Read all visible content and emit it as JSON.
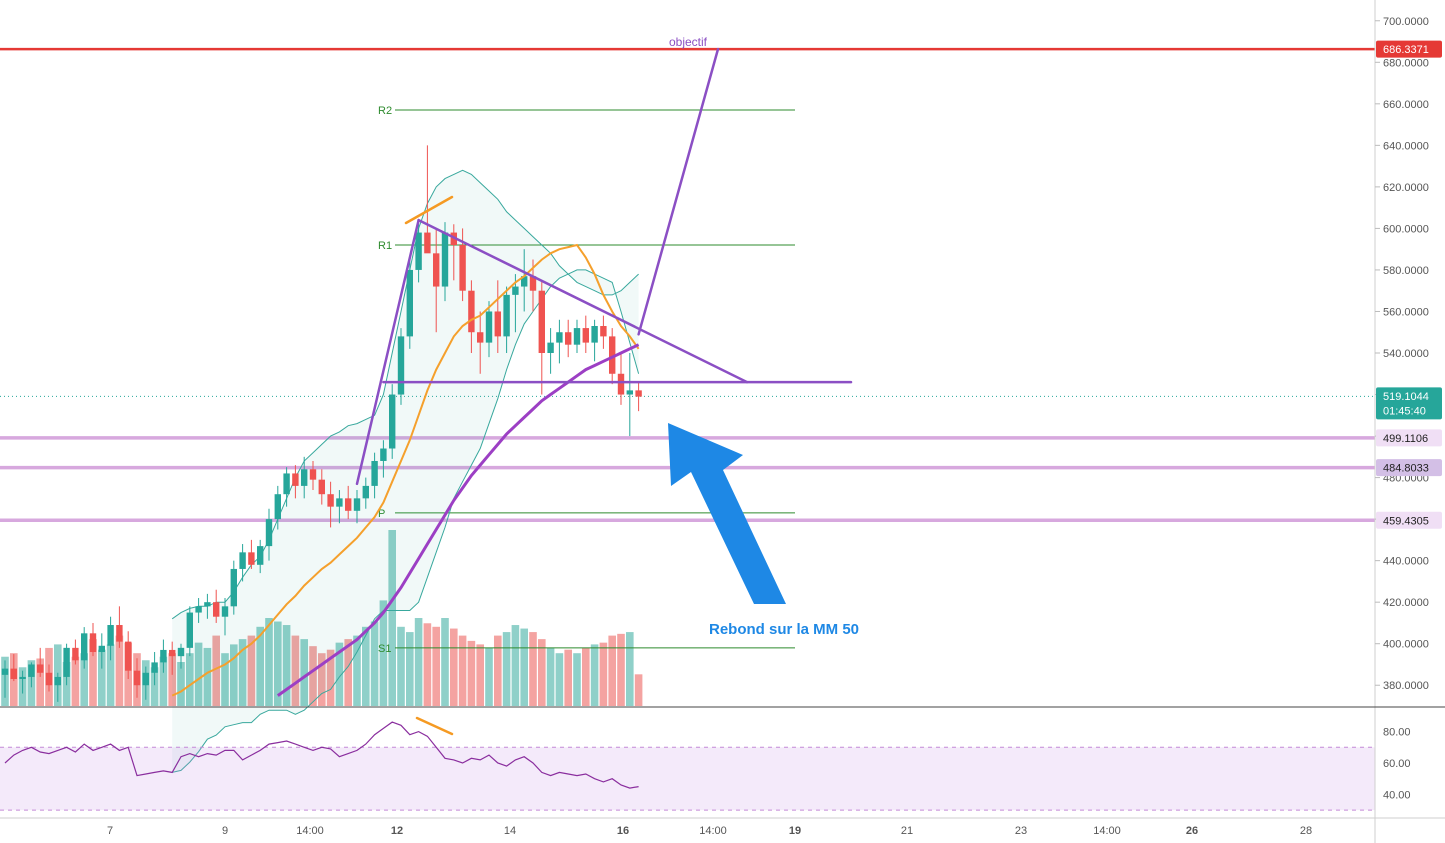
{
  "chart_data": {
    "type": "candlestick",
    "price_axis": {
      "min": 370,
      "max": 710,
      "ticks": [
        380,
        400,
        420,
        440,
        460,
        480,
        500,
        520,
        540,
        560,
        580,
        600,
        620,
        640,
        660,
        680,
        700
      ],
      "tick_labels": [
        "380.0000",
        "400.0000",
        "420.0000",
        "440.0000",
        "460.0000",
        "480.0000",
        "500.0000",
        "520.0000",
        "540.0000",
        "560.0000",
        "580.0000",
        "600.0000",
        "620.0000",
        "640.0000",
        "660.0000",
        "680.0000",
        "700.0000"
      ]
    },
    "time_axis": {
      "tick_labels": [
        "7",
        "9",
        "14:00",
        "12",
        "14",
        "16",
        "14:00",
        "19",
        "21",
        "23",
        "14:00",
        "26",
        "28"
      ],
      "bold": [
        "12",
        "16",
        "19",
        "26"
      ]
    },
    "colors": {
      "up": "#26a69a",
      "down": "#ef5350",
      "up_volume": "#8fd0c9",
      "down_volume": "#f4a3a1",
      "resistance": "#e53935",
      "support": "#d7a8de",
      "pattern": "#8b4fc4",
      "ma20": "#f5a02c",
      "ma50": "#9c3fc4",
      "bollinger": "#38a89d",
      "pivot": "#2e8b2e",
      "arrow": "#1e88e5",
      "divergence": "#f59a23"
    },
    "candles": [
      [
        385,
        392,
        374,
        388
      ],
      [
        388,
        395,
        382,
        383
      ],
      [
        383,
        387,
        376,
        384
      ],
      [
        384,
        391,
        379,
        390
      ],
      [
        390,
        398,
        384,
        386
      ],
      [
        386,
        390,
        377,
        380
      ],
      [
        380,
        386,
        372,
        384
      ],
      [
        384,
        400,
        380,
        398
      ],
      [
        398,
        402,
        390,
        392
      ],
      [
        392,
        408,
        388,
        405
      ],
      [
        405,
        410,
        394,
        396
      ],
      [
        396,
        405,
        388,
        399
      ],
      [
        399,
        413,
        392,
        409
      ],
      [
        409,
        418,
        398,
        401
      ],
      [
        401,
        406,
        383,
        387
      ],
      [
        387,
        393,
        374,
        380
      ],
      [
        380,
        389,
        373,
        386
      ],
      [
        386,
        396,
        380,
        391
      ],
      [
        391,
        402,
        386,
        397
      ],
      [
        397,
        401,
        385,
        394
      ],
      [
        394,
        400,
        388,
        398
      ],
      [
        398,
        418,
        394,
        415
      ],
      [
        415,
        422,
        410,
        418
      ],
      [
        418,
        424,
        412,
        420
      ],
      [
        420,
        426,
        410,
        413
      ],
      [
        413,
        422,
        404,
        418
      ],
      [
        418,
        440,
        414,
        436
      ],
      [
        436,
        448,
        430,
        444
      ],
      [
        444,
        450,
        436,
        438
      ],
      [
        438,
        450,
        434,
        447
      ],
      [
        447,
        465,
        440,
        460
      ],
      [
        460,
        476,
        455,
        472
      ],
      [
        472,
        485,
        466,
        482
      ],
      [
        482,
        486,
        470,
        476
      ],
      [
        476,
        490,
        470,
        484
      ],
      [
        484,
        488,
        474,
        479
      ],
      [
        479,
        484,
        467,
        472
      ],
      [
        472,
        478,
        456,
        466
      ],
      [
        466,
        474,
        458,
        470
      ],
      [
        470,
        476,
        460,
        464
      ],
      [
        464,
        474,
        458,
        470
      ],
      [
        470,
        480,
        465,
        476
      ],
      [
        476,
        492,
        470,
        488
      ],
      [
        488,
        498,
        480,
        494
      ],
      [
        494,
        525,
        489,
        520
      ],
      [
        520,
        552,
        515,
        548
      ],
      [
        548,
        585,
        542,
        580
      ],
      [
        580,
        603,
        574,
        598
      ],
      [
        598,
        640,
        590,
        588
      ],
      [
        588,
        600,
        550,
        572
      ],
      [
        572,
        603,
        565,
        598
      ],
      [
        598,
        602,
        575,
        592
      ],
      [
        592,
        600,
        565,
        570
      ],
      [
        570,
        575,
        540,
        550
      ],
      [
        550,
        560,
        530,
        545
      ],
      [
        545,
        565,
        538,
        560
      ],
      [
        560,
        575,
        540,
        548
      ],
      [
        548,
        572,
        540,
        568
      ],
      [
        568,
        578,
        550,
        572
      ],
      [
        572,
        590,
        560,
        577
      ],
      [
        577,
        585,
        560,
        570
      ],
      [
        570,
        575,
        520,
        540
      ],
      [
        540,
        552,
        530,
        545
      ],
      [
        545,
        556,
        535,
        550
      ],
      [
        550,
        556,
        538,
        544
      ],
      [
        544,
        556,
        540,
        552
      ],
      [
        552,
        558,
        540,
        545
      ],
      [
        545,
        556,
        536,
        553
      ],
      [
        553,
        558,
        542,
        548
      ],
      [
        548,
        552,
        525,
        530
      ],
      [
        530,
        540,
        515,
        520
      ],
      [
        520,
        540,
        500,
        522
      ],
      [
        522,
        526,
        512,
        519
      ]
    ],
    "volume_rel": [
      0.28,
      0.3,
      0.22,
      0.26,
      0.27,
      0.33,
      0.35,
      0.25,
      0.28,
      0.3,
      0.38,
      0.32,
      0.35,
      0.4,
      0.36,
      0.3,
      0.26,
      0.22,
      0.28,
      0.3,
      0.25,
      0.3,
      0.36,
      0.33,
      0.4,
      0.3,
      0.35,
      0.38,
      0.4,
      0.45,
      0.5,
      0.48,
      0.46,
      0.4,
      0.38,
      0.34,
      0.3,
      0.32,
      0.36,
      0.38,
      0.4,
      0.45,
      0.48,
      0.6,
      1.0,
      0.45,
      0.42,
      0.5,
      0.47,
      0.45,
      0.5,
      0.44,
      0.4,
      0.37,
      0.35,
      0.33,
      0.4,
      0.42,
      0.46,
      0.44,
      0.42,
      0.38,
      0.33,
      0.3,
      0.32,
      0.3,
      0.33,
      0.35,
      0.36,
      0.4,
      0.41,
      0.42,
      0.18
    ],
    "sma20": [
      null,
      null,
      null,
      null,
      null,
      null,
      null,
      null,
      null,
      null,
      null,
      null,
      null,
      null,
      null,
      null,
      null,
      null,
      null,
      375,
      377,
      380,
      383,
      386,
      388,
      390,
      393,
      397,
      400,
      404,
      409,
      414,
      419,
      423,
      428,
      432,
      436,
      439,
      443,
      447,
      451,
      456,
      461,
      468,
      478,
      488,
      498,
      510,
      522,
      532,
      540,
      548,
      553,
      556,
      558,
      562,
      566,
      570,
      574,
      577,
      581,
      585,
      588,
      590,
      591,
      592,
      586,
      578,
      568,
      560,
      553,
      548,
      542
    ],
    "sma50": [
      null,
      null,
      null,
      null,
      null,
      null,
      null,
      null,
      null,
      null,
      null,
      null,
      null,
      null,
      null,
      null,
      null,
      null,
      null,
      null,
      null,
      null,
      null,
      null,
      null,
      null,
      null,
      null,
      null,
      null,
      null,
      375,
      378,
      381,
      384,
      387,
      390,
      393,
      396,
      399,
      402,
      406,
      410,
      415,
      421,
      427,
      434,
      441,
      448,
      455,
      462,
      469,
      475,
      481,
      486,
      491,
      496,
      501,
      505,
      509,
      513,
      517,
      520,
      523,
      526,
      529,
      532,
      534,
      536,
      538,
      540,
      542,
      544
    ],
    "bollinger_upper": [
      null,
      null,
      null,
      null,
      null,
      null,
      null,
      null,
      null,
      null,
      null,
      null,
      null,
      null,
      null,
      null,
      null,
      null,
      null,
      412,
      415,
      417,
      418,
      418,
      420,
      420,
      425,
      432,
      438,
      442,
      450,
      460,
      470,
      480,
      488,
      492,
      496,
      500,
      502,
      505,
      506,
      508,
      510,
      520,
      540,
      560,
      580,
      600,
      612,
      620,
      624,
      626,
      628,
      626,
      622,
      618,
      614,
      608,
      604,
      600,
      596,
      592,
      588,
      582,
      578,
      574,
      572,
      570,
      568,
      568,
      570,
      574,
      578
    ],
    "bollinger_lower": [
      null,
      null,
      null,
      null,
      null,
      null,
      null,
      null,
      null,
      null,
      null,
      null,
      null,
      null,
      null,
      null,
      null,
      null,
      null,
      338,
      339,
      343,
      348,
      354,
      356,
      360,
      361,
      362,
      362,
      366,
      368,
      368,
      368,
      366,
      368,
      372,
      376,
      378,
      384,
      389,
      396,
      404,
      412,
      416,
      416,
      416,
      416,
      420,
      432,
      444,
      456,
      470,
      478,
      486,
      494,
      506,
      518,
      532,
      544,
      554,
      560,
      566,
      572,
      576,
      578,
      580,
      580,
      578,
      576,
      574,
      560,
      545,
      530
    ],
    "rsi": {
      "min": 25,
      "max": 95,
      "upper_band": 70,
      "lower_band": 30,
      "ticks": [
        40,
        60,
        80
      ],
      "tick_labels": [
        "40.00",
        "60.00",
        "80.00"
      ],
      "values": [
        60,
        65,
        68,
        70,
        67,
        66,
        68,
        70,
        67,
        72,
        68,
        70,
        72,
        68,
        70,
        52,
        53,
        54,
        55,
        54,
        64,
        66,
        64,
        66,
        65,
        68,
        68,
        62,
        65,
        68,
        72,
        73,
        74,
        72,
        70,
        68,
        70,
        69,
        64,
        66,
        68,
        72,
        78,
        82,
        86,
        84,
        78,
        80,
        77,
        70,
        63,
        62,
        60,
        63,
        62,
        65,
        60,
        58,
        62,
        64,
        60,
        54,
        52,
        54,
        53,
        52,
        53,
        50,
        48,
        50,
        46,
        44,
        45
      ]
    },
    "last_candle_index": 72,
    "price_tags": [
      {
        "label": "686.3371",
        "value": 686.3371,
        "kind": "resistance"
      },
      {
        "label": "519.1044",
        "sub": "01:45:40",
        "value": 519.1044,
        "kind": "last"
      },
      {
        "label": "499.1106",
        "value": 499.1106,
        "kind": "support"
      },
      {
        "label": "484.8033",
        "value": 484.8033,
        "kind": "support"
      },
      {
        "label": "459.4305",
        "value": 459.4305,
        "kind": "support"
      }
    ],
    "pivots": [
      {
        "label": "R2",
        "value": 657
      },
      {
        "label": "R1",
        "value": 592
      },
      {
        "label": "P",
        "value": 463
      },
      {
        "label": "S1",
        "value": 398
      }
    ],
    "annotations": {
      "objective": "objectif",
      "note": "Rebond sur la MM 50"
    }
  }
}
